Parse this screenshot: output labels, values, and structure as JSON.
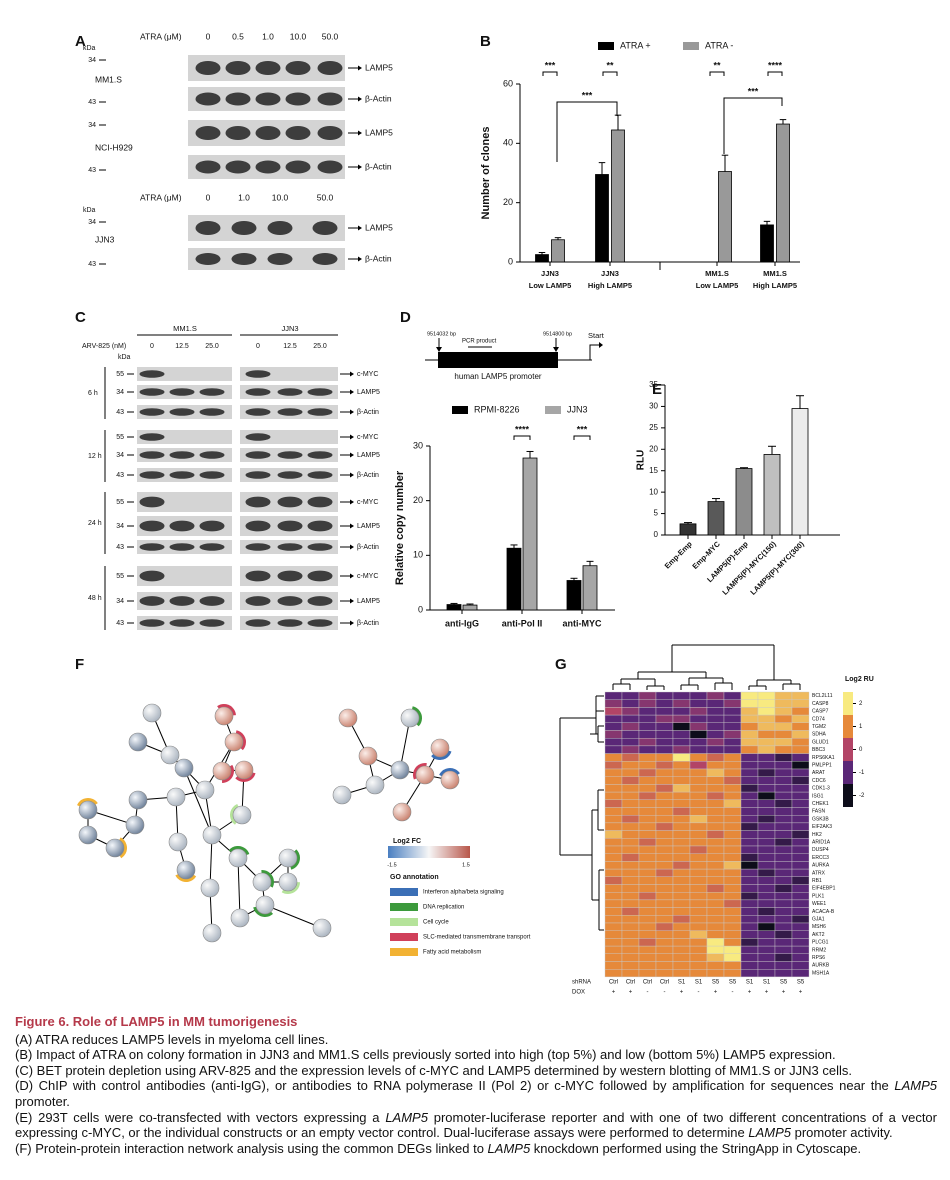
{
  "panel_labels": [
    "A",
    "B",
    "C",
    "D",
    "E",
    "F",
    "G"
  ],
  "panel_a": {
    "treatment_label": "ATRA (μM)",
    "doses": [
      "0",
      "0.5",
      "1.0",
      "10.0",
      "50.0"
    ],
    "kda": "kDa",
    "mw": [
      "34",
      "43"
    ],
    "targets": [
      "LAMP5",
      "β-Actin"
    ],
    "cell_lines": [
      "MM1.S",
      "NCI-H929"
    ],
    "treatment_label_2": "ATRA (μM)",
    "doses_2": [
      "0",
      "1.0",
      "10.0",
      "50.0"
    ],
    "cell_line_2": "JJN3"
  },
  "panel_c": {
    "groups": [
      "MM1.S",
      "JJN3"
    ],
    "treatment_label": "ARV-825 (nM)",
    "doses": [
      "0",
      "12.5",
      "25.0"
    ],
    "kda": "kDa",
    "timepoints": [
      "6 h",
      "12 h",
      "24 h",
      "48 h"
    ],
    "mw": [
      "55",
      "34",
      "43"
    ],
    "targets": [
      "c-MYC",
      "LAMP5",
      "β-Actin"
    ]
  },
  "panel_d": {
    "promoter_label": "human LAMP5 promoter",
    "start_coord": "9514032 bp",
    "end_coord": "9514800 bp",
    "pcr": "PCR product",
    "start": "Start"
  },
  "chart_data": [
    {
      "type": "bar",
      "ylabel": "Number of clones",
      "categories": [
        [
          "JJN3",
          "Low LAMP5"
        ],
        [
          "JJN3",
          "High LAMP5"
        ],
        [
          "MM1.S",
          "Low LAMP5"
        ],
        [
          "MM1.S",
          "High LAMP5"
        ]
      ],
      "series": [
        {
          "name": "ATRA +",
          "color": "#000000",
          "values": [
            2.5,
            29.5,
            0,
            12.5
          ],
          "errors": [
            0.7,
            4,
            0,
            1.2
          ]
        },
        {
          "name": "ATRA -",
          "color": "#999999",
          "values": [
            7.5,
            44.5,
            30.5,
            46.5
          ],
          "errors": [
            0.7,
            5,
            5.5,
            1.5
          ]
        }
      ],
      "ylim": [
        0,
        60
      ],
      "yticks": [
        0,
        20,
        40,
        60
      ],
      "significance": [
        "***",
        "**",
        "**",
        "****",
        "***",
        "***"
      ]
    },
    {
      "type": "bar",
      "ylabel": "Relative copy number",
      "categories": [
        "anti-IgG",
        "anti-Pol II",
        "anti-MYC"
      ],
      "series": [
        {
          "name": "RPMI-8226",
          "color": "#000000",
          "values": [
            1.0,
            11.3,
            5.4
          ],
          "errors": [
            0.2,
            0.6,
            0.4
          ]
        },
        {
          "name": "JJN3",
          "color": "#a6a6a6",
          "values": [
            0.9,
            27.8,
            8.1
          ],
          "errors": [
            0.2,
            1.2,
            0.8
          ]
        }
      ],
      "ylim": [
        0,
        30
      ],
      "yticks": [
        0,
        10,
        20,
        30
      ],
      "significance": [
        "****",
        "***"
      ]
    },
    {
      "type": "bar",
      "ylabel": "RLU",
      "categories": [
        "Emp-Emp",
        "Emp-MYC",
        "LAMP5(P)-Emp",
        "LAMP5(P)-MYC(150)",
        "LAMP5(P)-MYC(300)"
      ],
      "values": [
        2.6,
        7.8,
        15.5,
        18.8,
        29.5
      ],
      "errors": [
        0.3,
        0.7,
        0.2,
        1.9,
        3
      ],
      "colors": [
        "#333333",
        "#595959",
        "#8c8c8c",
        "#bfbfbf",
        "#ececec"
      ],
      "ylim": [
        0,
        35
      ],
      "yticks": [
        0,
        5,
        10,
        15,
        20,
        25,
        30,
        35
      ]
    }
  ],
  "panel_f": {
    "legend_title": "Log2 FC",
    "scale": [
      -1.5,
      1.5
    ],
    "go_title": "GO annotation",
    "go_terms": [
      {
        "name": "Interferon alpha/beta signaling",
        "color": "#3b6fb6"
      },
      {
        "name": "DNA replication",
        "color": "#3c9a3c"
      },
      {
        "name": "Cell cycle",
        "color": "#b5e39a"
      },
      {
        "name": "SLC-mediated transmembrane transport",
        "color": "#d0405a"
      },
      {
        "name": "Fatty acid metabolism",
        "color": "#f2b233"
      }
    ]
  },
  "panel_g": {
    "legend_title": "Log2 RU",
    "legend_ticks": [
      2,
      1,
      0,
      -1,
      -2
    ],
    "legend_colors": [
      "#f8ea80",
      "#e6893a",
      "#b24466",
      "#5a2777",
      "#0d0d1a"
    ],
    "genes": [
      "BCL2L11",
      "CASP8",
      "CASP7",
      "CD74",
      "TGM2",
      "SDHA",
      "GLUD1",
      "BBC3",
      "RPS6KA1",
      "PMLPP1",
      "ARAT",
      "CDC6",
      "CDK1-3",
      "ISG1",
      "CHEK1",
      "FASN",
      "GSK3B",
      "EIF2AK3",
      "HK2",
      "ARID1A",
      "DUSP4",
      "ERCC3",
      "AURKA",
      "ATRX",
      "RB1",
      "EIF4EBP1",
      "PLK1",
      "WEE1",
      "ACACA-B",
      "GJA1",
      "MSH6",
      "AKT2",
      "PLCG1",
      "RRM2",
      "RPS6",
      "AURKB",
      "MSH1A"
    ],
    "row_labels": [
      "shRNA",
      "DOX"
    ],
    "shrna": [
      "Ctrl",
      "Ctrl",
      "Ctrl",
      "Ctrl",
      "S1",
      "S1",
      "S5",
      "S5",
      "S1",
      "S1",
      "S5",
      "S5"
    ],
    "dox": [
      "+",
      "+",
      "-",
      "-",
      "+",
      "-",
      "+",
      "-",
      "+",
      "+",
      "+",
      "+"
    ],
    "values": [
      [
        -1,
        -1,
        -0.5,
        -1,
        -1,
        -1,
        -0.5,
        -1,
        2,
        2,
        1.5,
        1.5
      ],
      [
        -0.5,
        -1,
        -0.5,
        -1,
        -0.5,
        -1,
        -1,
        -0.5,
        2,
        2,
        1.5,
        1.5
      ],
      [
        0,
        -0.5,
        -1,
        -1,
        -1,
        -0.5,
        -1,
        -1,
        1.5,
        2,
        1.5,
        1
      ],
      [
        -1,
        -1,
        -1,
        -0.5,
        -0.5,
        -1,
        -1,
        -1,
        1.5,
        1.5,
        1,
        1.5
      ],
      [
        -1,
        -0.5,
        -1,
        -1,
        -2,
        -0.5,
        -1,
        -1,
        1,
        1.5,
        1.5,
        1
      ],
      [
        -0.5,
        -1,
        -1,
        -1,
        -1,
        -2,
        -1,
        -0.5,
        1.5,
        1,
        1,
        1.5
      ],
      [
        -1,
        -1,
        -0.5,
        -1,
        -1,
        -1,
        -0.5,
        -1,
        1.5,
        1.5,
        1.5,
        1
      ],
      [
        -1,
        -0.5,
        -1,
        -1,
        -0.5,
        -1,
        -1,
        -1,
        1,
        1.5,
        1,
        1
      ],
      [
        1,
        0.5,
        1,
        1,
        2,
        1,
        0.5,
        1,
        -1,
        -1,
        -1.5,
        -1
      ],
      [
        0.5,
        1,
        1,
        0.5,
        1,
        0,
        1,
        1,
        -1,
        -1,
        -1,
        -2
      ],
      [
        1,
        1,
        0.5,
        1,
        1,
        1,
        1.5,
        1,
        -1,
        -1.5,
        -1,
        -1
      ],
      [
        1,
        0.5,
        1,
        1,
        1,
        1,
        1,
        0.5,
        -1,
        -1,
        -1,
        -1.5
      ],
      [
        1,
        1,
        1,
        0.5,
        1.5,
        1,
        1,
        1,
        -1.5,
        -1,
        -1,
        -1
      ],
      [
        1,
        1,
        0.5,
        1,
        1,
        1,
        0.5,
        1,
        -1,
        -2,
        -1,
        -1
      ],
      [
        0.5,
        1,
        1,
        1,
        1,
        1,
        1,
        1.5,
        -1,
        -1,
        -1.5,
        -1
      ],
      [
        1,
        1,
        1,
        1,
        0.5,
        1,
        1,
        1,
        -1,
        -1,
        -1,
        -1
      ],
      [
        1,
        0.5,
        1,
        1,
        1,
        1.5,
        1,
        1,
        -1,
        -1.5,
        -1,
        -1
      ],
      [
        1,
        1,
        1,
        0.5,
        1,
        1,
        1,
        1,
        -1.5,
        -1,
        -1,
        -1
      ],
      [
        1.5,
        1,
        1,
        1,
        1,
        1,
        0.5,
        1,
        -1,
        -1,
        -1,
        -1.5
      ],
      [
        1,
        1,
        0.5,
        1,
        1,
        1,
        1,
        1,
        -1,
        -1,
        -1.5,
        -1
      ],
      [
        1,
        1,
        1,
        1,
        1,
        0.5,
        1,
        1,
        -1,
        -1,
        -1,
        -1
      ],
      [
        1,
        0.5,
        1,
        1,
        1,
        1,
        1,
        1,
        -1.5,
        -1,
        -1,
        -1
      ],
      [
        1,
        1,
        1,
        1,
        0.5,
        1,
        1,
        1.5,
        -2,
        -1,
        -1,
        -1
      ],
      [
        1,
        1,
        1,
        0.5,
        1,
        1,
        1,
        1,
        -1,
        -1.5,
        -1,
        -1
      ],
      [
        0.5,
        1,
        1,
        1,
        1,
        1,
        1,
        1,
        -1,
        -1,
        -1,
        -1.5
      ],
      [
        1,
        1,
        1,
        1,
        1,
        1,
        0.5,
        1,
        -1,
        -1,
        -1.5,
        -1
      ],
      [
        1,
        1,
        0.5,
        1,
        1,
        1,
        1,
        1,
        -1.5,
        -1,
        -1,
        -1
      ],
      [
        1,
        1,
        1,
        1,
        1,
        1,
        1,
        0.5,
        -1,
        -1,
        -1,
        -1
      ],
      [
        1,
        0.5,
        1,
        1,
        1,
        1,
        1,
        1,
        -1,
        -1.5,
        -1,
        -1
      ],
      [
        1,
        1,
        1,
        1,
        0.5,
        1,
        1,
        1,
        -1,
        -1,
        -1,
        -1.5
      ],
      [
        1,
        1,
        1,
        0.5,
        1,
        1,
        1,
        1,
        -1,
        -2,
        -1,
        -1
      ],
      [
        1,
        1,
        1,
        1,
        1,
        1.5,
        1,
        1,
        -1,
        -1,
        -1.5,
        -1
      ],
      [
        1,
        1,
        0.5,
        1,
        1,
        1,
        2,
        1,
        -1.5,
        -1,
        -1,
        -1
      ],
      [
        1,
        1,
        1,
        1,
        1,
        1,
        2,
        2,
        -1,
        -1,
        -1,
        -1
      ],
      [
        1,
        1,
        1,
        1,
        1,
        1,
        1.5,
        2,
        -1,
        -1,
        -1.5,
        -1
      ],
      [
        1,
        1,
        1,
        1,
        1,
        1,
        1,
        1,
        -1,
        -1,
        -1,
        -1
      ],
      [
        1,
        1,
        1,
        1,
        1,
        1,
        1,
        1,
        -1,
        -1,
        -1,
        -1
      ]
    ]
  },
  "caption": {
    "title": "Figure 6. Role of LAMP5 in MM tumorigenesis",
    "paragraphs": [
      [
        "(A) ATRA reduces LAMP5 levels in myeloma cell lines."
      ],
      [
        "(B) Impact of ATRA on colony formation in JJN3 and MM1.S cells previously sorted into high (top 5%) and low (bottom 5%) LAMP5 expression."
      ],
      [
        "(C) BET protein depletion using ARV-825 and the expression levels of c-MYC and LAMP5 determined by western blotting of MM1.S or JJN3 cells."
      ],
      [
        "(D) ChIP with control antibodies (anti-IgG), or antibodies to RNA polymerase II (Pol 2) or c-MYC followed by amplification for sequences near the ",
        {
          "text": "LAMP5",
          "italic": true
        },
        " promoter."
      ],
      [
        "(E) 293T cells were co-transfected with vectors expressing a ",
        {
          "text": "LAMP5",
          "italic": true
        },
        " promoter-luciferase reporter and with one of two different concentrations of a vector expressing c-MYC, or the individual constructs or an empty vector control. Dual-luciferase assays were performed to determine ",
        {
          "text": "LAMP5",
          "italic": true
        },
        " promoter activity."
      ],
      [
        "(F) Protein-protein interaction network analysis using the common DEGs linked to ",
        {
          "text": "LAMP5",
          "italic": true
        },
        " knockdown performed using the StringApp in Cytoscape."
      ]
    ]
  }
}
